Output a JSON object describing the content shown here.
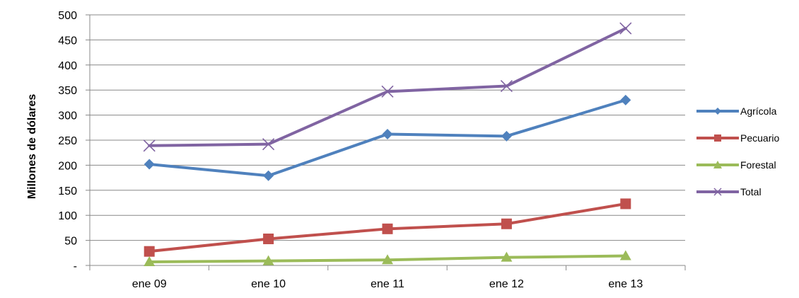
{
  "chart_data": {
    "type": "line",
    "categories": [
      "ene 09",
      "ene 10",
      "ene 11",
      "ene 12",
      "ene 13"
    ],
    "ylabel": "Millones de dólares",
    "xlabel": "",
    "ylim": [
      0,
      500
    ],
    "yticks": [
      0,
      50,
      100,
      150,
      200,
      250,
      300,
      350,
      400,
      450,
      500
    ],
    "ytick_labels": [
      "-",
      "50",
      "100",
      "150",
      "200",
      "250",
      "300",
      "350",
      "400",
      "450",
      "500"
    ],
    "grid": true,
    "legend_position": "right",
    "series": [
      {
        "name": "Agrícola",
        "values": [
          202,
          179,
          262,
          258,
          330
        ],
        "color": "#4F81BD",
        "marker": "diamond"
      },
      {
        "name": "Pecuario",
        "values": [
          28,
          53,
          73,
          83,
          123
        ],
        "color": "#C0504D",
        "marker": "square"
      },
      {
        "name": "Forestal",
        "values": [
          7,
          9,
          11,
          16,
          19
        ],
        "color": "#9BBB59",
        "marker": "triangle"
      },
      {
        "name": "Total",
        "values": [
          239,
          242,
          347,
          358,
          473
        ],
        "color": "#8064A2",
        "marker": "x"
      }
    ]
  }
}
